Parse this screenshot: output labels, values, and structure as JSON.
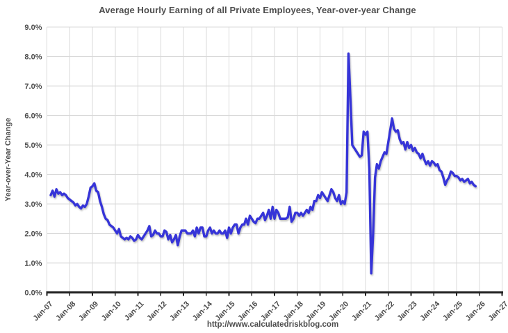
{
  "page": {
    "title": "Average Hourly Earning of all Private Employees, Year-over-year Change",
    "footer": "http://www.calculatedriskblog.com"
  },
  "colors": {
    "line": "#3634d8",
    "grid": "#d9d9d9",
    "axis": "#1f1f1f",
    "text": "#4d4d4d"
  },
  "chart_data": {
    "type": "line",
    "title": "Average Hourly Earning of all Private Employees, Year-over-year Change",
    "xlabel": "",
    "ylabel": "Year-over-Year Change",
    "source_note": "http://www.calculatedriskblog.com",
    "grid": true,
    "legend": "none",
    "ylim": [
      0,
      9
    ],
    "y_ticks": [
      0,
      1,
      2,
      3,
      4,
      5,
      6,
      7,
      8,
      9
    ],
    "y_tick_labels": [
      "0.0%",
      "1.0%",
      "2.0%",
      "3.0%",
      "4.0%",
      "5.0%",
      "6.0%",
      "7.0%",
      "8.0%",
      "9.0%"
    ],
    "x_tick_labels": [
      "Jan-07",
      "Jan-08",
      "Jan-09",
      "Jan-10",
      "Jan-11",
      "Jan-12",
      "Jan-13",
      "Jan-14",
      "Jan-15",
      "Jan-16",
      "Jan-17",
      "Jan-18",
      "Jan-19",
      "Jan-20",
      "Jan-21",
      "Jan-22",
      "Jan-23",
      "Jan-24",
      "Jan-25",
      "Jan-26",
      "Jan-27"
    ],
    "series": [
      {
        "name": "Average hourly earnings, all private employees, year-over-year % change",
        "frequency": "monthly",
        "x_start": "2007-03",
        "x_end": "2025-11",
        "unit": "percent",
        "values": [
          3.3,
          3.45,
          3.25,
          3.5,
          3.35,
          3.4,
          3.3,
          3.35,
          3.3,
          3.2,
          3.15,
          3.1,
          3.05,
          2.95,
          3.0,
          2.9,
          2.85,
          2.95,
          2.9,
          3.0,
          3.25,
          3.55,
          3.6,
          3.7,
          3.45,
          3.4,
          3.1,
          2.9,
          2.65,
          2.5,
          2.45,
          2.3,
          2.25,
          2.2,
          2.1,
          2.0,
          2.15,
          1.9,
          1.85,
          1.8,
          1.85,
          1.8,
          1.9,
          1.85,
          1.75,
          1.8,
          1.95,
          1.85,
          1.8,
          1.9,
          2.0,
          2.1,
          2.25,
          1.9,
          1.95,
          2.1,
          2.0,
          2.0,
          1.9,
          1.9,
          2.1,
          2.05,
          1.8,
          1.95,
          1.7,
          1.8,
          1.95,
          1.6,
          1.9,
          2.1,
          2.1,
          2.1,
          2.0,
          2.0,
          2.0,
          2.1,
          1.9,
          2.2,
          2.0,
          2.2,
          2.2,
          1.9,
          1.9,
          2.1,
          2.2,
          2.0,
          2.1,
          2.0,
          2.0,
          2.1,
          2.0,
          2.0,
          2.1,
          1.85,
          2.2,
          2.0,
          2.2,
          2.3,
          2.3,
          2.0,
          2.2,
          2.3,
          2.3,
          2.5,
          2.3,
          2.6,
          2.5,
          2.4,
          2.35,
          2.5,
          2.5,
          2.6,
          2.7,
          2.45,
          2.6,
          2.8,
          2.5,
          2.9,
          2.5,
          2.8,
          2.7,
          2.5,
          2.5,
          2.5,
          2.5,
          2.55,
          2.9,
          2.4,
          2.5,
          2.7,
          2.7,
          2.6,
          2.7,
          2.6,
          2.7,
          2.8,
          2.7,
          2.9,
          2.8,
          3.1,
          3.1,
          3.3,
          3.2,
          3.4,
          3.3,
          3.2,
          3.1,
          3.3,
          3.5,
          3.4,
          3.2,
          3.1,
          3.3,
          3.0,
          3.1,
          3.0,
          3.4,
          8.1,
          6.6,
          5.0,
          4.9,
          4.8,
          4.7,
          4.6,
          4.65,
          5.45,
          5.35,
          5.45,
          4.2,
          0.65,
          2.0,
          3.9,
          4.35,
          4.2,
          4.45,
          4.6,
          4.75,
          4.7,
          5.1,
          5.5,
          5.9,
          5.55,
          5.45,
          5.5,
          5.2,
          5.05,
          5.1,
          4.85,
          5.1,
          4.9,
          5.0,
          4.8,
          4.9,
          4.75,
          4.7,
          4.55,
          4.7,
          4.5,
          4.35,
          4.45,
          4.3,
          4.45,
          4.4,
          4.3,
          4.35,
          4.15,
          4.1,
          3.9,
          3.65,
          3.8,
          3.9,
          4.1,
          4.05,
          3.95,
          3.95,
          3.9,
          3.8,
          3.85,
          3.75,
          3.8,
          3.85,
          3.7,
          3.75,
          3.65,
          3.6
        ]
      }
    ]
  }
}
